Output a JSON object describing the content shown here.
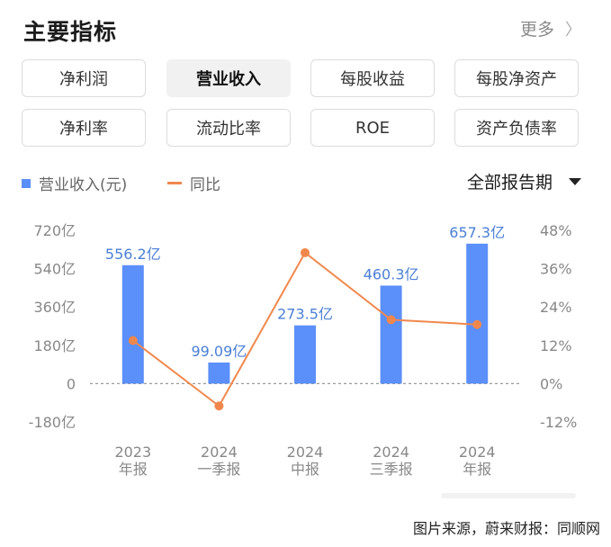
{
  "header": {
    "title": "主要指标",
    "more_label": "更多",
    "more_chevron": "〉"
  },
  "tabs": [
    {
      "label": "净利润",
      "active": false
    },
    {
      "label": "营业收入",
      "active": true
    },
    {
      "label": "每股收益",
      "active": false
    },
    {
      "label": "每股净资产",
      "active": false
    },
    {
      "label": "净利率",
      "active": false
    },
    {
      "label": "流动比率",
      "active": false
    },
    {
      "label": "ROE",
      "active": false
    },
    {
      "label": "资产负债率",
      "active": false
    }
  ],
  "legend": {
    "bar_label": "营业收入(元)",
    "line_label": "同比"
  },
  "period_select": {
    "value": "全部报告期"
  },
  "colors": {
    "bar": "#5b8ff9",
    "line": "#f0884d",
    "bar_label": "#4a7fd6",
    "axis_text": "#888888"
  },
  "chart_data": {
    "type": "bar",
    "categories": [
      [
        "2023",
        "年报"
      ],
      [
        "2024",
        "一季报"
      ],
      [
        "2024",
        "中报"
      ],
      [
        "2024",
        "三季报"
      ],
      [
        "2024",
        "年报"
      ]
    ],
    "series": [
      {
        "name": "营业收入(元)",
        "type": "bar",
        "axis": "left",
        "values": [
          556.2,
          99.09,
          273.5,
          460.3,
          657.3
        ],
        "labels": [
          "556.2亿",
          "99.09亿",
          "273.5亿",
          "460.3亿",
          "657.3亿"
        ]
      },
      {
        "name": "同比",
        "type": "line",
        "axis": "right",
        "values": [
          13.5,
          -7.0,
          41.0,
          20.0,
          18.5
        ]
      }
    ],
    "y_left": {
      "min": -180,
      "max": 720,
      "ticks": [
        720,
        540,
        360,
        180,
        0,
        -180
      ],
      "tick_labels": [
        "720亿",
        "540亿",
        "360亿",
        "180亿",
        "0",
        "-180亿"
      ]
    },
    "y_right": {
      "min": -12,
      "max": 48,
      "ticks": [
        48,
        36,
        24,
        12,
        0,
        -12
      ],
      "tick_labels": [
        "48%",
        "36%",
        "24%",
        "12%",
        "0%",
        "-12%"
      ]
    },
    "zero_line": "dashed"
  },
  "footer": {
    "source": "图片来源，蔚来财报：同顺网"
  }
}
